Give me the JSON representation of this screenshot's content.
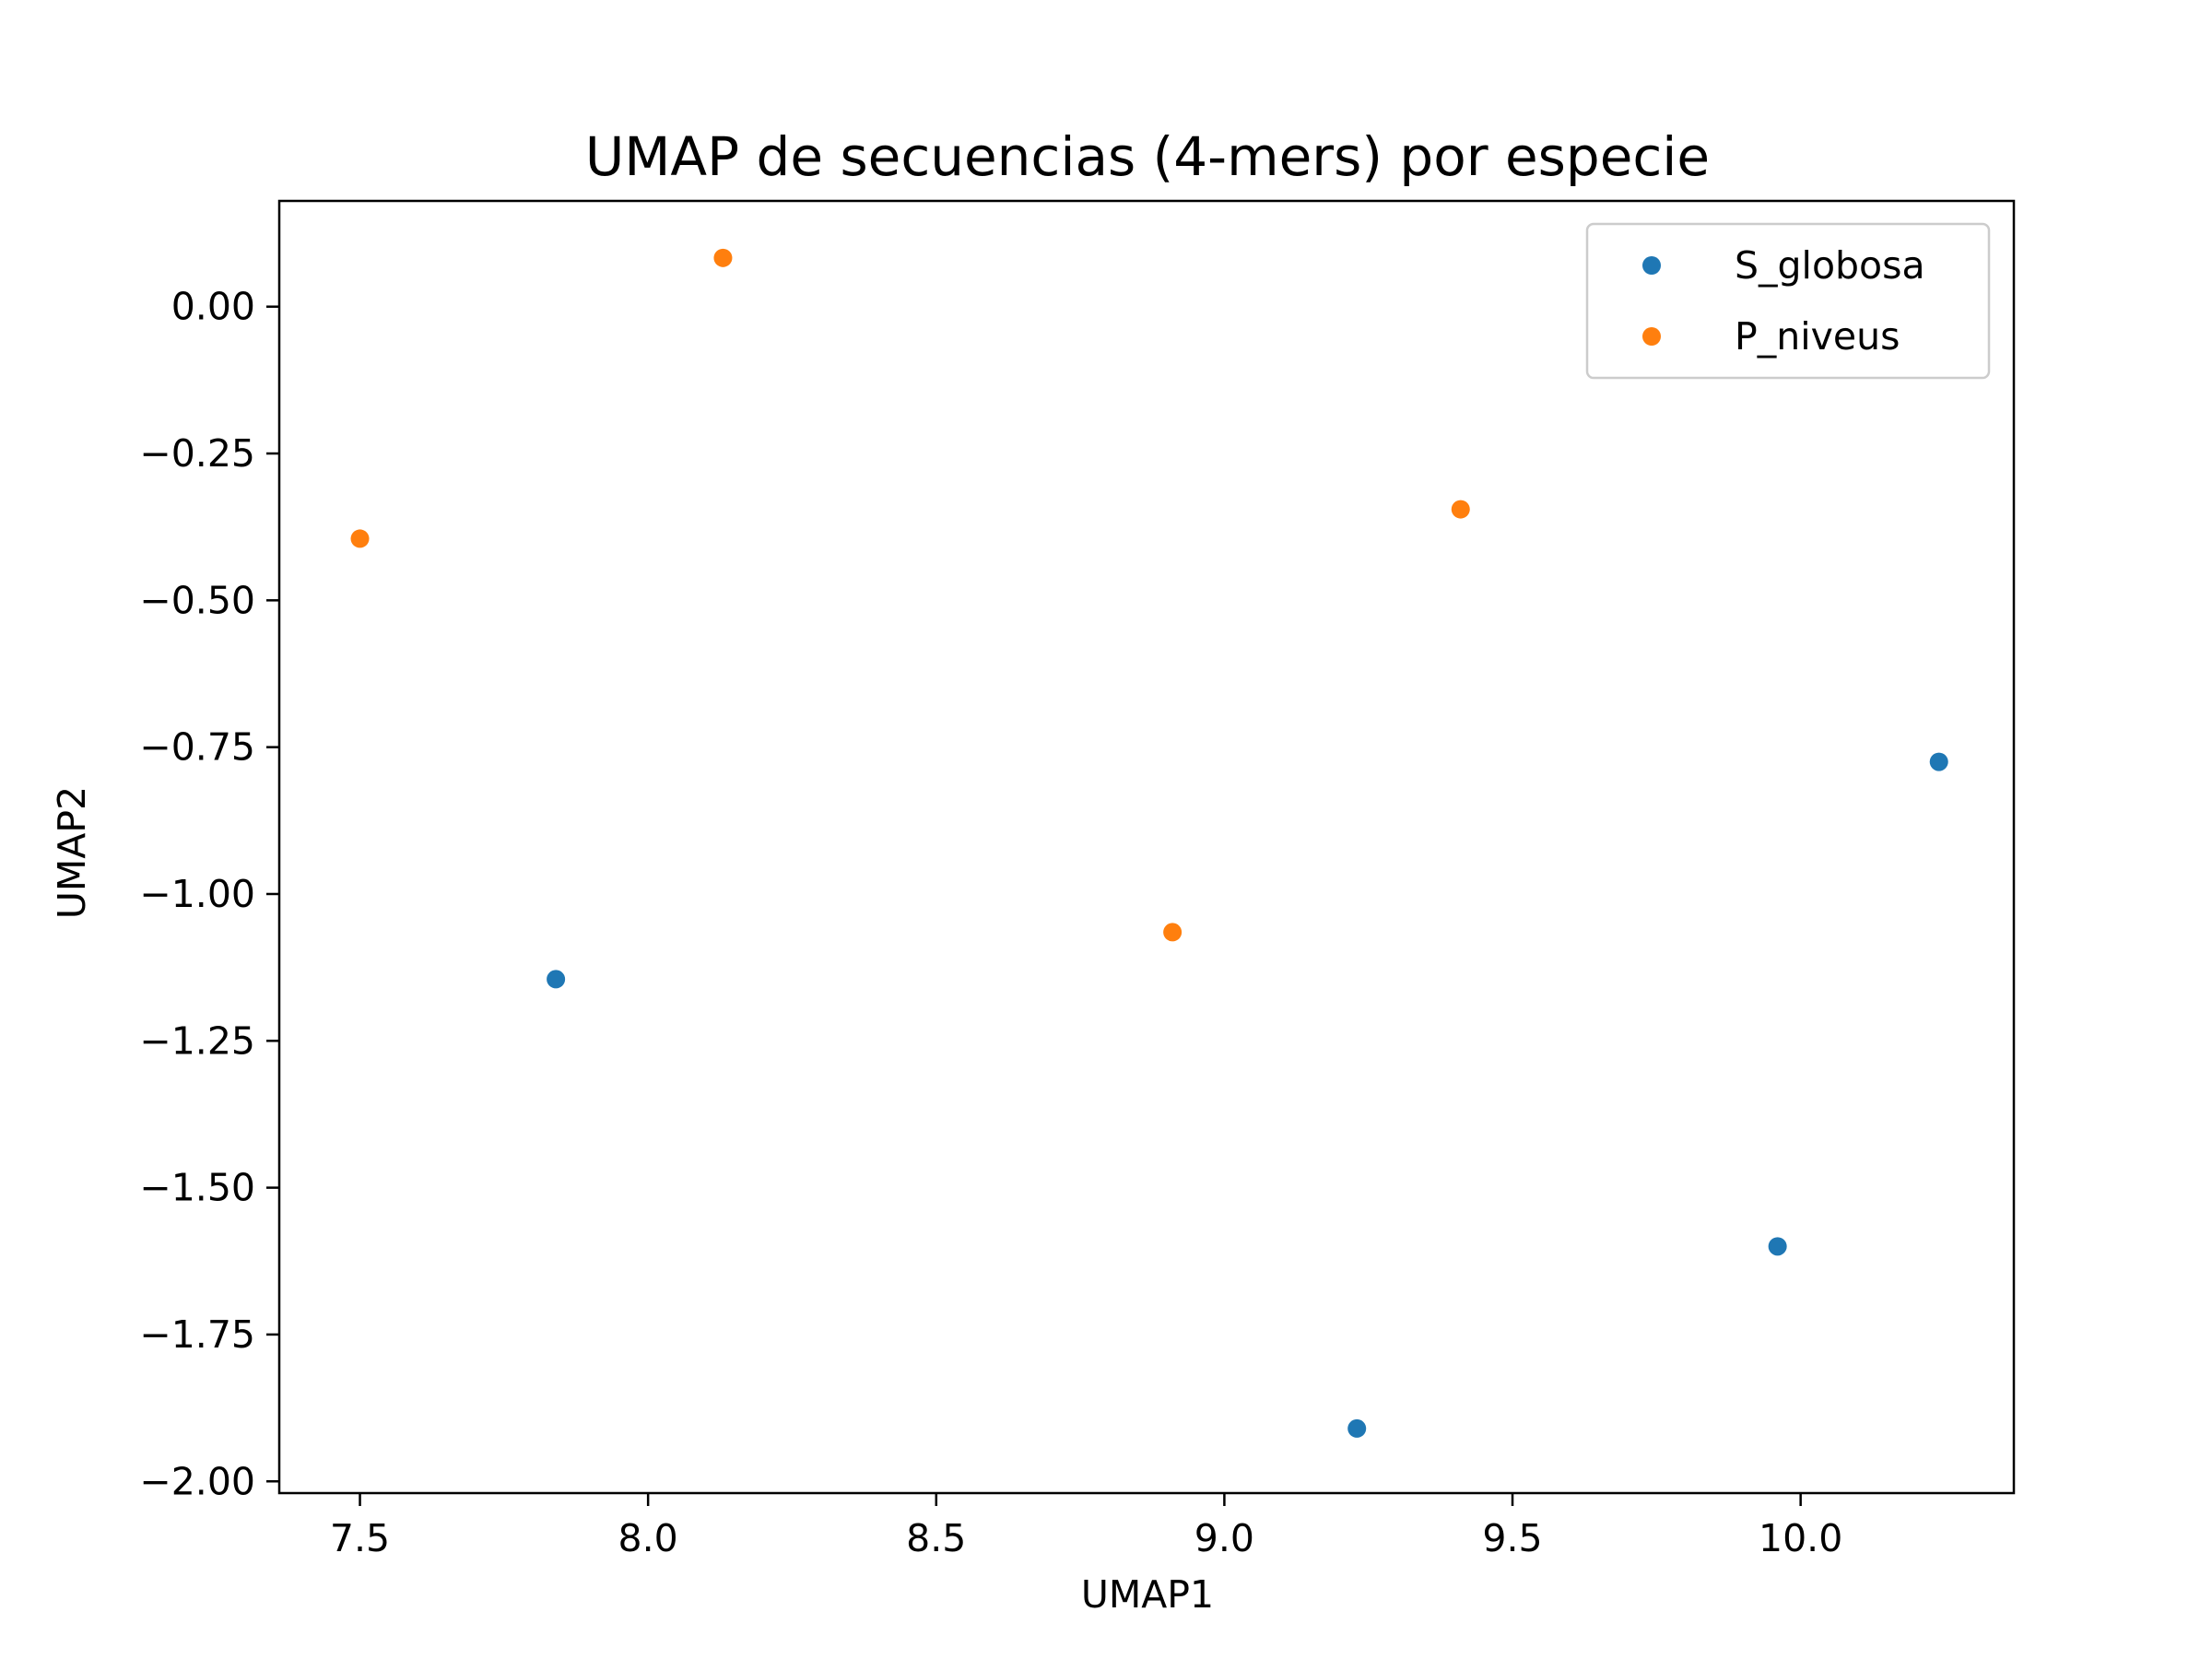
{
  "chart_data": {
    "type": "scatter",
    "title": "UMAP de secuencias (4-mers) por especie",
    "xlabel": "UMAP1",
    "ylabel": "UMAP2",
    "xlim": [
      7.36,
      10.37
    ],
    "ylim": [
      -2.02,
      0.18
    ],
    "xticks": [
      7.5,
      8.0,
      8.5,
      9.0,
      9.5,
      10.0
    ],
    "xtick_labels": [
      "7.5",
      "8.0",
      "8.5",
      "9.0",
      "9.5",
      "10.0"
    ],
    "yticks": [
      0.0,
      -0.25,
      -0.5,
      -0.75,
      -1.0,
      -1.25,
      -1.5,
      -1.75,
      -2.0
    ],
    "ytick_labels": [
      "0.00",
      "−0.25",
      "−0.50",
      "−0.75",
      "−1.00",
      "−1.25",
      "−1.50",
      "−1.75",
      "−2.00"
    ],
    "grid": false,
    "legend_position": "top-right",
    "series": [
      {
        "name": "S_globosa",
        "color": "#1f77b4",
        "points": [
          {
            "x": 7.84,
            "y": -1.145
          },
          {
            "x": 9.23,
            "y": -1.91
          },
          {
            "x": 9.96,
            "y": -1.6
          },
          {
            "x": 10.24,
            "y": -0.775
          }
        ]
      },
      {
        "name": "P_niveus",
        "color": "#ff7f0e",
        "points": [
          {
            "x": 7.5,
            "y": -0.395
          },
          {
            "x": 8.13,
            "y": 0.083
          },
          {
            "x": 8.91,
            "y": -1.065
          },
          {
            "x": 9.41,
            "y": -0.345
          }
        ]
      }
    ]
  }
}
